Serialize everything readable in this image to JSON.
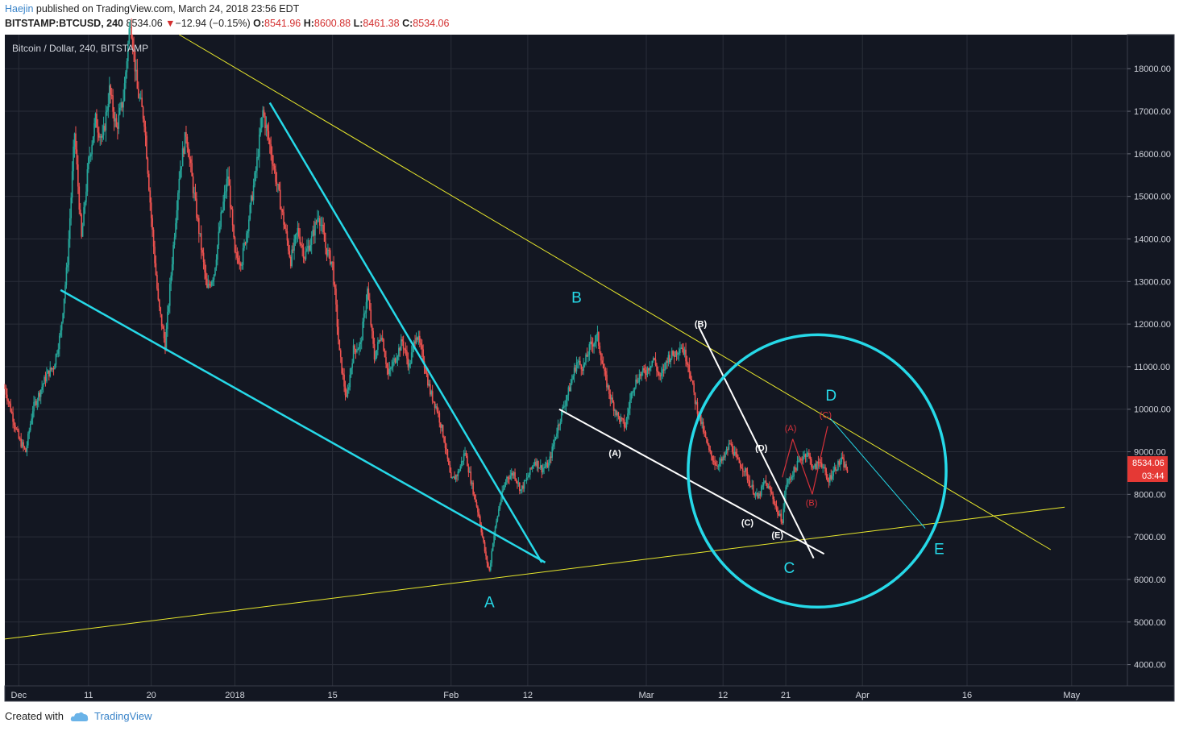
{
  "header": {
    "author": "Haejin",
    "published_text": " published on TradingView.com, March 24, 2018 23:56 EDT",
    "symbol": "BITSTAMP:BTCUSD, 240",
    "last": "8534.06",
    "change_arrow": "▼",
    "change": "−12.94 (−0.15%)",
    "o_label": "O:",
    "o": "8541.96",
    "h_label": "H:",
    "h": "8600.88",
    "l_label": "L:",
    "l": "8461.38",
    "c_label": "C:",
    "c": "8534.06"
  },
  "footer": {
    "created_with": "Created with",
    "brand": "TradingView"
  },
  "colors": {
    "background": "#131722",
    "grid": "#2a2e39",
    "up": "#26a69a",
    "down": "#ef5350",
    "cyan": "#26d9e8",
    "yellow": "#e8e82c",
    "white": "#ffffff",
    "red": "#d6313a",
    "price_tag": "#e53935"
  },
  "chart_data": {
    "type": "candlestick",
    "title": "Bitcoin / Dollar, 240, BITSTAMP",
    "y_ticks": [
      "4000.00",
      "5000.00",
      "6000.00",
      "7000.00",
      "8000.00",
      "9000.00",
      "10000.00",
      "11000.00",
      "12000.00",
      "13000.00",
      "14000.00",
      "15000.00",
      "16000.00",
      "17000.00",
      "18000.00"
    ],
    "x_ticks": [
      {
        "label": "Dec",
        "day": 0
      },
      {
        "label": "11",
        "day": 10
      },
      {
        "label": "20",
        "day": 19
      },
      {
        "label": "2018",
        "day": 31
      },
      {
        "label": "15",
        "day": 45
      },
      {
        "label": "Feb",
        "day": 62
      },
      {
        "label": "12",
        "day": 73
      },
      {
        "label": "Mar",
        "day": 90
      },
      {
        "label": "12",
        "day": 101
      },
      {
        "label": "21",
        "day": 110
      },
      {
        "label": "Apr",
        "day": 121
      },
      {
        "label": "16",
        "day": 136
      },
      {
        "label": "May",
        "day": 151
      }
    ],
    "ylim": [
      3500,
      18800
    ],
    "xlim_days": [
      -2,
      159
    ],
    "last_price": "8534.06",
    "countdown": "03:44",
    "price_path": [
      [
        -2,
        10500
      ],
      [
        0,
        9300
      ],
      [
        1,
        9000
      ],
      [
        2,
        10000
      ],
      [
        4,
        10800
      ],
      [
        5,
        11000
      ],
      [
        6,
        11800
      ],
      [
        7,
        13500
      ],
      [
        8,
        16500
      ],
      [
        9,
        14000
      ],
      [
        10,
        15800
      ],
      [
        11,
        16800
      ],
      [
        12,
        16300
      ],
      [
        13,
        17500
      ],
      [
        14,
        16600
      ],
      [
        15,
        17300
      ],
      [
        16,
        19200
      ],
      [
        17,
        17500
      ],
      [
        18,
        16800
      ],
      [
        19,
        14500
      ],
      [
        20,
        12500
      ],
      [
        21,
        11500
      ],
      [
        22,
        13500
      ],
      [
        23,
        15500
      ],
      [
        24,
        16500
      ],
      [
        25,
        15200
      ],
      [
        26,
        14000
      ],
      [
        27,
        12800
      ],
      [
        28,
        13200
      ],
      [
        29,
        14500
      ],
      [
        30,
        15500
      ],
      [
        31,
        13600
      ],
      [
        32,
        13500
      ],
      [
        33,
        14500
      ],
      [
        34,
        15600
      ],
      [
        35,
        17000
      ],
      [
        36,
        16200
      ],
      [
        37,
        15300
      ],
      [
        38,
        14400
      ],
      [
        39,
        13500
      ],
      [
        40,
        14200
      ],
      [
        41,
        13600
      ],
      [
        42,
        14000
      ],
      [
        43,
        14600
      ],
      [
        44,
        13800
      ],
      [
        45,
        13400
      ],
      [
        46,
        11300
      ],
      [
        47,
        10200
      ],
      [
        48,
        11400
      ],
      [
        49,
        11500
      ],
      [
        50,
        12800
      ],
      [
        51,
        11200
      ],
      [
        52,
        11800
      ],
      [
        53,
        10800
      ],
      [
        54,
        11200
      ],
      [
        55,
        11600
      ],
      [
        56,
        11000
      ],
      [
        57,
        11800
      ],
      [
        58,
        11200
      ],
      [
        59,
        10400
      ],
      [
        60,
        10000
      ],
      [
        61,
        9300
      ],
      [
        62,
        8300
      ],
      [
        63,
        8500
      ],
      [
        64,
        9000
      ],
      [
        65,
        8200
      ],
      [
        66,
        7500
      ],
      [
        67,
        6500
      ],
      [
        67.5,
        6200
      ],
      [
        68,
        6900
      ],
      [
        69,
        7800
      ],
      [
        70,
        8400
      ],
      [
        71,
        8500
      ],
      [
        72,
        8100
      ],
      [
        73,
        8400
      ],
      [
        74,
        8800
      ],
      [
        75,
        8600
      ],
      [
        76,
        8700
      ],
      [
        77,
        9400
      ],
      [
        78,
        10000
      ],
      [
        79,
        10500
      ],
      [
        80,
        11100
      ],
      [
        81,
        11000
      ],
      [
        82,
        11500
      ],
      [
        83,
        11700
      ],
      [
        84,
        10800
      ],
      [
        85,
        10200
      ],
      [
        86,
        9800
      ],
      [
        87,
        9600
      ],
      [
        88,
        10500
      ],
      [
        89,
        10800
      ],
      [
        90,
        10900
      ],
      [
        91,
        11200
      ],
      [
        92,
        10700
      ],
      [
        93,
        11200
      ],
      [
        94,
        11300
      ],
      [
        95,
        11500
      ],
      [
        96,
        11100
      ],
      [
        97,
        10200
      ],
      [
        98,
        9600
      ],
      [
        99,
        9000
      ],
      [
        100,
        8700
      ],
      [
        101,
        8800
      ],
      [
        102,
        9200
      ],
      [
        103,
        8800
      ],
      [
        104,
        8600
      ],
      [
        105,
        8200
      ],
      [
        106,
        7900
      ],
      [
        107,
        8300
      ],
      [
        108,
        8000
      ],
      [
        109,
        7500
      ],
      [
        109.5,
        7400
      ],
      [
        110,
        8200
      ],
      [
        111,
        8500
      ],
      [
        112,
        8800
      ],
      [
        113,
        9000
      ],
      [
        114,
        8600
      ],
      [
        115,
        8800
      ],
      [
        116,
        8300
      ],
      [
        117,
        8600
      ],
      [
        118,
        8800
      ],
      [
        119,
        8500
      ]
    ],
    "annotations": {
      "labels": [
        {
          "text": "A",
          "color": "cyan",
          "day": 67.5,
          "price": 5350,
          "size": 19
        },
        {
          "text": "B",
          "color": "cyan",
          "day": 80,
          "price": 12500,
          "size": 19
        },
        {
          "text": "C",
          "color": "cyan",
          "day": 110.5,
          "price": 6150,
          "size": 19
        },
        {
          "text": "D",
          "color": "cyan",
          "day": 116.5,
          "price": 10200,
          "size": 19
        },
        {
          "text": "E",
          "color": "cyan",
          "day": 132,
          "price": 6600,
          "size": 19
        },
        {
          "text": "(A)",
          "color": "white",
          "day": 85.5,
          "price": 8900,
          "size": 11
        },
        {
          "text": "(B)",
          "color": "white",
          "day": 97.8,
          "price": 11940,
          "size": 11
        },
        {
          "text": "(C)",
          "color": "white",
          "day": 104.5,
          "price": 7270,
          "size": 11
        },
        {
          "text": "(D)",
          "color": "white",
          "day": 106.5,
          "price": 9020,
          "size": 11
        },
        {
          "text": "(E)",
          "color": "white",
          "day": 108.8,
          "price": 6970,
          "size": 11
        },
        {
          "text": "(A)",
          "color": "red",
          "day": 110.7,
          "price": 9480,
          "size": 11
        },
        {
          "text": "(B)",
          "color": "red",
          "day": 113.7,
          "price": 7730,
          "size": 11
        },
        {
          "text": "(C)",
          "color": "red",
          "day": 115.7,
          "price": 9800,
          "size": 11
        }
      ],
      "lines": [
        {
          "color": "yellow",
          "width": 1,
          "from": [
            -2,
            4600
          ],
          "to": [
            150,
            7700
          ]
        },
        {
          "color": "yellow",
          "width": 1,
          "from": [
            23,
            18800
          ],
          "to": [
            148,
            6700
          ]
        },
        {
          "color": "cyan",
          "width": 2.5,
          "from": [
            6,
            12800
          ],
          "to": [
            75.5,
            6400
          ]
        },
        {
          "color": "cyan",
          "width": 2.5,
          "from": [
            36,
            17200
          ],
          "to": [
            75,
            6400
          ]
        },
        {
          "color": "cyan",
          "width": 1,
          "from": [
            116.3,
            9800
          ],
          "to": [
            130,
            7200
          ]
        },
        {
          "color": "white",
          "width": 2,
          "from": [
            77.5,
            10000
          ],
          "to": [
            115.5,
            6600
          ]
        },
        {
          "color": "white",
          "width": 2,
          "from": [
            97.5,
            11950
          ],
          "to": [
            114,
            6500
          ]
        },
        {
          "color": "red",
          "width": 1.2,
          "from": [
            109.5,
            8400
          ],
          "to": [
            111,
            9300
          ]
        },
        {
          "color": "red",
          "width": 1.2,
          "from": [
            111,
            9300
          ],
          "to": [
            113.8,
            8000
          ]
        },
        {
          "color": "red",
          "width": 1.2,
          "from": [
            113.8,
            8000
          ],
          "to": [
            116,
            9600
          ]
        }
      ],
      "circle": {
        "color": "cyan",
        "center_day": 114.5,
        "center_price": 8550,
        "radius_days": 18.5,
        "radius_price": 3200
      }
    }
  }
}
